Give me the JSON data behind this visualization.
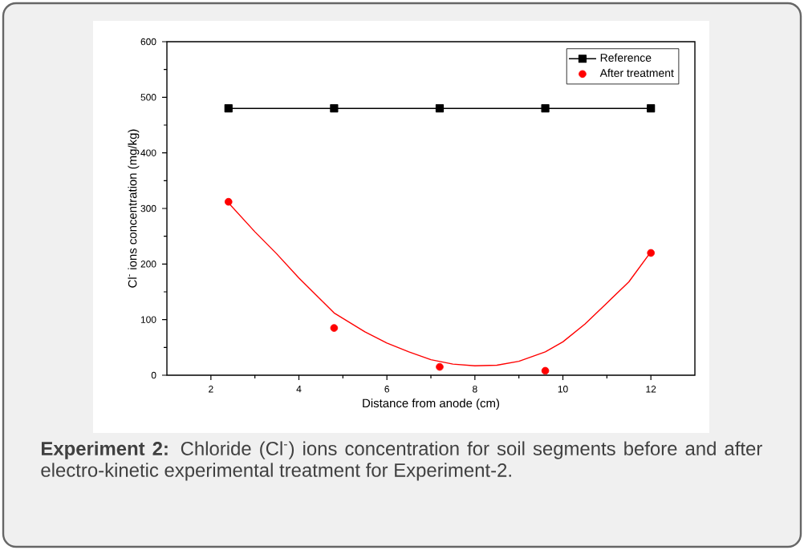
{
  "chart_data": {
    "type": "line",
    "xlabel": "Distance from anode (cm)",
    "ylabel": "Cl$^{-}$ ions concentration (mg/kg)",
    "xlim": [
      1,
      13
    ],
    "ylim": [
      0,
      600
    ],
    "xticks": [
      2,
      4,
      6,
      8,
      10,
      12
    ],
    "yticks": [
      0,
      100,
      200,
      300,
      400,
      500,
      600
    ],
    "legend": "top right",
    "series": [
      {
        "name": "Reference",
        "color": "#000000",
        "marker": "square",
        "x": [
          2.4,
          4.8,
          7.2,
          9.6,
          12
        ],
        "values": [
          480,
          480,
          480,
          480,
          480
        ]
      },
      {
        "name": "After treatment",
        "color": "#ff0000",
        "marker": "circle",
        "type": "scatter",
        "x": [
          2.4,
          4.8,
          7.2,
          9.6,
          12
        ],
        "values": [
          312,
          85,
          15,
          8,
          220
        ]
      },
      {
        "color": "#ff0000",
        "marker": "none",
        "x": [
          2.4,
          3,
          3.5,
          4,
          4.8,
          5.5,
          6,
          6.5,
          7,
          7.5,
          8,
          8.5,
          9,
          9.6,
          10,
          10.5,
          11,
          11.5,
          12
        ],
        "values": [
          310,
          258,
          218,
          175,
          112,
          78,
          58,
          42,
          28,
          20,
          17,
          18,
          25,
          42,
          60,
          92,
          130,
          168,
          222
        ]
      }
    ],
    "annotations": [
      "**Experiment 2:** Chloride (Cl$^{-}$) ions concentration for soil segments before and after electro-kinetic experimental treatment for Experiment-2."
    ]
  }
}
